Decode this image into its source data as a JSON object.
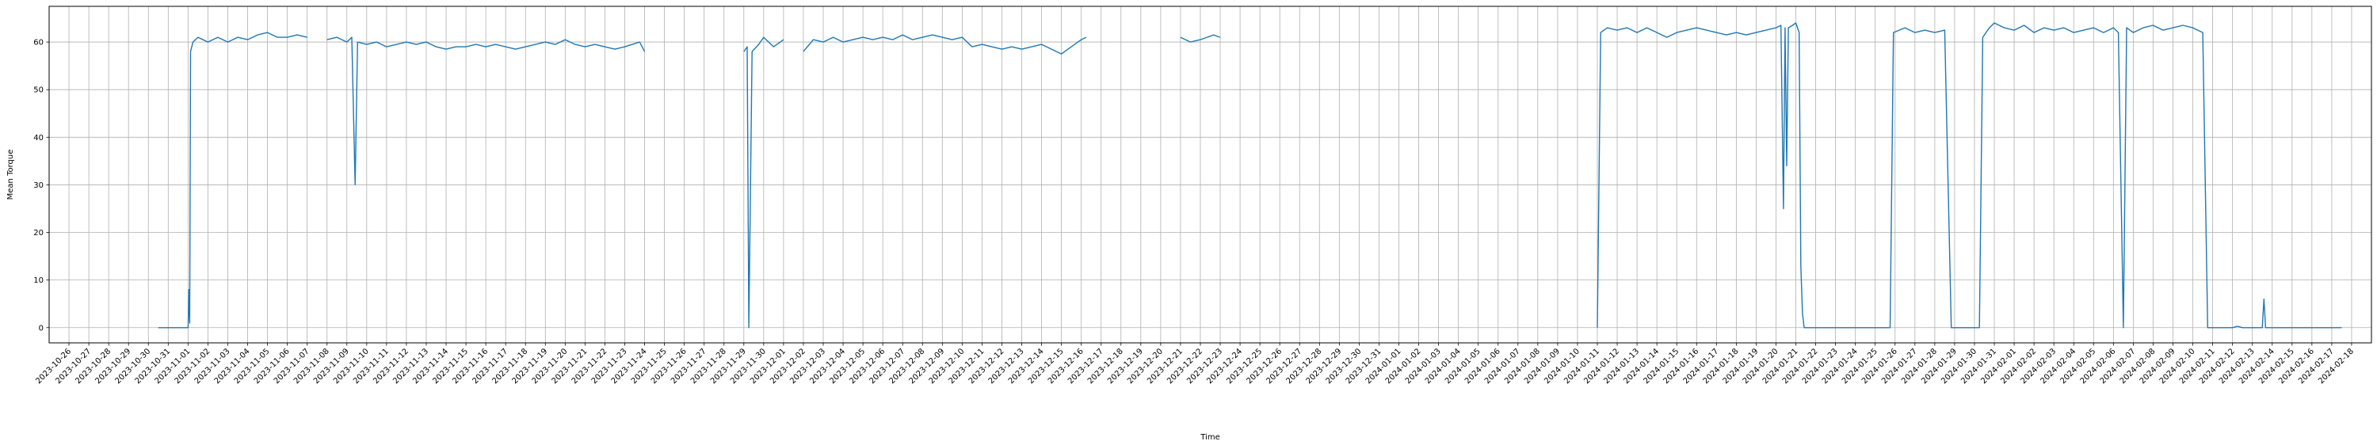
{
  "chart_data": {
    "type": "line",
    "xlabel": "Time",
    "ylabel": "Mean Torque",
    "x_type": "date",
    "xlim": [
      "2023-10-25",
      "2024-02-19"
    ],
    "ylim": [
      -3.2,
      67.5
    ],
    "y_ticks": [
      0,
      10,
      20,
      30,
      40,
      50,
      60
    ],
    "x_tick_start": "2023-10-26",
    "x_tick_end": "2024-02-18",
    "x_tick_step_days": 1,
    "grid": true,
    "legend": "none",
    "line_color": "#1f77b4",
    "series": [
      {
        "segments": [
          [
            [
              "2023-10-30 12:00",
              0
            ],
            [
              "2023-10-31 12:00",
              0
            ],
            [
              "2023-11-01 00:00",
              0
            ],
            [
              "2023-11-01 01:00",
              8
            ],
            [
              "2023-11-01 02:00",
              1
            ],
            [
              "2023-11-01 03:00",
              58
            ],
            [
              "2023-11-01 06:00",
              60
            ],
            [
              "2023-11-01 12:00",
              61
            ],
            [
              "2023-11-02 00:00",
              60
            ],
            [
              "2023-11-02 12:00",
              61
            ],
            [
              "2023-11-03 00:00",
              60
            ],
            [
              "2023-11-03 12:00",
              61
            ],
            [
              "2023-11-04 00:00",
              60.5
            ],
            [
              "2023-11-04 12:00",
              61.5
            ],
            [
              "2023-11-05 00:00",
              62
            ],
            [
              "2023-11-05 12:00",
              61
            ],
            [
              "2023-11-06 00:00",
              61
            ],
            [
              "2023-11-06 12:00",
              61.5
            ],
            [
              "2023-11-07 00:00",
              61
            ]
          ],
          [
            [
              "2023-11-08 00:00",
              60.5
            ],
            [
              "2023-11-08 12:00",
              61
            ],
            [
              "2023-11-09 00:00",
              60
            ],
            [
              "2023-11-09 06:00",
              61
            ],
            [
              "2023-11-09 10:00",
              30
            ],
            [
              "2023-11-09 13:00",
              60
            ],
            [
              "2023-11-10 00:00",
              59.5
            ],
            [
              "2023-11-10 12:00",
              60
            ],
            [
              "2023-11-11 00:00",
              59
            ],
            [
              "2023-11-11 12:00",
              59.5
            ],
            [
              "2023-11-12 00:00",
              60
            ],
            [
              "2023-11-12 12:00",
              59.5
            ],
            [
              "2023-11-13 00:00",
              60
            ],
            [
              "2023-11-13 12:00",
              59
            ],
            [
              "2023-11-14 00:00",
              58.5
            ],
            [
              "2023-11-14 12:00",
              59
            ],
            [
              "2023-11-15 00:00",
              59
            ],
            [
              "2023-11-15 12:00",
              59.5
            ],
            [
              "2023-11-16 00:00",
              59
            ],
            [
              "2023-11-16 12:00",
              59.5
            ],
            [
              "2023-11-17 00:00",
              59
            ],
            [
              "2023-11-17 12:00",
              58.5
            ],
            [
              "2023-11-18 00:00",
              59
            ],
            [
              "2023-11-18 12:00",
              59.5
            ],
            [
              "2023-11-19 00:00",
              60
            ],
            [
              "2023-11-19 12:00",
              59.5
            ],
            [
              "2023-11-20 00:00",
              60.5
            ],
            [
              "2023-11-20 12:00",
              59.5
            ],
            [
              "2023-11-21 00:00",
              59
            ],
            [
              "2023-11-21 12:00",
              59.5
            ],
            [
              "2023-11-22 00:00",
              59
            ],
            [
              "2023-11-22 12:00",
              58.5
            ],
            [
              "2023-11-23 00:00",
              59
            ],
            [
              "2023-11-23 18:00",
              60
            ],
            [
              "2023-11-24 00:00",
              58
            ]
          ],
          [
            [
              "2023-11-29 00:00",
              58
            ],
            [
              "2023-11-29 04:00",
              59
            ],
            [
              "2023-11-29 06:00",
              0
            ],
            [
              "2023-11-29 10:00",
              58
            ],
            [
              "2023-11-29 18:00",
              59.5
            ],
            [
              "2023-11-30 00:00",
              61
            ],
            [
              "2023-11-30 12:00",
              59
            ],
            [
              "2023-12-01 00:00",
              60.5
            ]
          ],
          [
            [
              "2023-12-02 00:00",
              58
            ],
            [
              "2023-12-02 12:00",
              60.5
            ],
            [
              "2023-12-03 00:00",
              60
            ],
            [
              "2023-12-03 12:00",
              61
            ],
            [
              "2023-12-04 00:00",
              60
            ],
            [
              "2023-12-04 12:00",
              60.5
            ],
            [
              "2023-12-05 00:00",
              61
            ],
            [
              "2023-12-05 12:00",
              60.5
            ],
            [
              "2023-12-06 00:00",
              61
            ],
            [
              "2023-12-06 12:00",
              60.5
            ],
            [
              "2023-12-07 00:00",
              61.5
            ],
            [
              "2023-12-07 12:00",
              60.5
            ],
            [
              "2023-12-08 00:00",
              61
            ],
            [
              "2023-12-08 12:00",
              61.5
            ],
            [
              "2023-12-09 00:00",
              61
            ],
            [
              "2023-12-09 12:00",
              60.5
            ],
            [
              "2023-12-10 00:00",
              61
            ],
            [
              "2023-12-10 12:00",
              59
            ],
            [
              "2023-12-11 00:00",
              59.5
            ],
            [
              "2023-12-11 12:00",
              59
            ],
            [
              "2023-12-12 00:00",
              58.5
            ],
            [
              "2023-12-12 12:00",
              59
            ],
            [
              "2023-12-13 00:00",
              58.5
            ],
            [
              "2023-12-13 12:00",
              59
            ],
            [
              "2023-12-14 00:00",
              59.5
            ],
            [
              "2023-12-14 12:00",
              58.5
            ],
            [
              "2023-12-15 00:00",
              57.5
            ],
            [
              "2023-12-15 12:00",
              59
            ],
            [
              "2023-12-16 00:00",
              60.5
            ],
            [
              "2023-12-16 06:00",
              61
            ]
          ],
          [
            [
              "2023-12-21 00:00",
              61
            ],
            [
              "2023-12-21 06:00",
              60.5
            ],
            [
              "2023-12-21 12:00",
              60
            ],
            [
              "2023-12-22 00:00",
              60.5
            ],
            [
              "2023-12-22 08:00",
              61
            ],
            [
              "2023-12-22 16:00",
              61.5
            ],
            [
              "2023-12-23 00:00",
              61
            ]
          ],
          [
            [
              "2024-01-11 00:00",
              0
            ],
            [
              "2024-01-11 04:00",
              62
            ],
            [
              "2024-01-11 12:00",
              63
            ],
            [
              "2024-01-12 00:00",
              62.5
            ],
            [
              "2024-01-12 12:00",
              63
            ],
            [
              "2024-01-13 00:00",
              62
            ],
            [
              "2024-01-13 12:00",
              63
            ],
            [
              "2024-01-14 00:00",
              62
            ],
            [
              "2024-01-14 12:00",
              61
            ],
            [
              "2024-01-15 00:00",
              62
            ],
            [
              "2024-01-15 12:00",
              62.5
            ],
            [
              "2024-01-16 00:00",
              63
            ],
            [
              "2024-01-16 12:00",
              62.5
            ],
            [
              "2024-01-17 00:00",
              62
            ],
            [
              "2024-01-17 12:00",
              61.5
            ],
            [
              "2024-01-18 00:00",
              62
            ],
            [
              "2024-01-18 12:00",
              61.5
            ],
            [
              "2024-01-19 00:00",
              62
            ],
            [
              "2024-01-19 12:00",
              62.5
            ],
            [
              "2024-01-20 00:00",
              63
            ],
            [
              "2024-01-20 06:00",
              63.5
            ],
            [
              "2024-01-20 09:00",
              25
            ],
            [
              "2024-01-20 11:00",
              63
            ],
            [
              "2024-01-20 13:00",
              34
            ],
            [
              "2024-01-20 15:00",
              63
            ],
            [
              "2024-01-20 20:00",
              63.5
            ],
            [
              "2024-01-21 00:00",
              64
            ],
            [
              "2024-01-21 04:00",
              62
            ],
            [
              "2024-01-21 06:00",
              13
            ],
            [
              "2024-01-21 08:00",
              3
            ],
            [
              "2024-01-21 10:00",
              0
            ],
            [
              "2024-01-22 00:00",
              0
            ],
            [
              "2024-01-24 00:00",
              0
            ],
            [
              "2024-01-25 18:00",
              0
            ],
            [
              "2024-01-25 22:00",
              62
            ],
            [
              "2024-01-26 12:00",
              63
            ],
            [
              "2024-01-27 00:00",
              62
            ],
            [
              "2024-01-27 12:00",
              62.5
            ],
            [
              "2024-01-28 00:00",
              62
            ],
            [
              "2024-01-28 12:00",
              62.5
            ],
            [
              "2024-01-28 20:00",
              0
            ],
            [
              "2024-01-29 00:00",
              0
            ],
            [
              "2024-01-30 00:00",
              0
            ],
            [
              "2024-01-30 06:00",
              0
            ],
            [
              "2024-01-30 10:00",
              61
            ],
            [
              "2024-01-30 18:00",
              63
            ],
            [
              "2024-01-31 00:00",
              64
            ],
            [
              "2024-01-31 12:00",
              63
            ],
            [
              "2024-02-01 00:00",
              62.5
            ],
            [
              "2024-02-01 12:00",
              63.5
            ],
            [
              "2024-02-02 00:00",
              62
            ],
            [
              "2024-02-02 12:00",
              63
            ],
            [
              "2024-02-03 00:00",
              62.5
            ],
            [
              "2024-02-03 12:00",
              63
            ],
            [
              "2024-02-04 00:00",
              62
            ],
            [
              "2024-02-04 12:00",
              62.5
            ],
            [
              "2024-02-05 00:00",
              63
            ],
            [
              "2024-02-05 12:00",
              62
            ],
            [
              "2024-02-06 00:00",
              63
            ],
            [
              "2024-02-06 06:00",
              62
            ],
            [
              "2024-02-06 12:00",
              0
            ],
            [
              "2024-02-06 16:00",
              63
            ],
            [
              "2024-02-07 00:00",
              62
            ],
            [
              "2024-02-07 12:00",
              63
            ],
            [
              "2024-02-08 00:00",
              63.5
            ],
            [
              "2024-02-08 12:00",
              62.5
            ],
            [
              "2024-02-09 00:00",
              63
            ],
            [
              "2024-02-09 12:00",
              63.5
            ],
            [
              "2024-02-10 00:00",
              63
            ],
            [
              "2024-02-10 12:00",
              62
            ],
            [
              "2024-02-10 18:00",
              0
            ],
            [
              "2024-02-11 00:00",
              0
            ],
            [
              "2024-02-12 00:00",
              0
            ],
            [
              "2024-02-12 06:00",
              0.3
            ],
            [
              "2024-02-12 12:00",
              0
            ],
            [
              "2024-02-13 12:00",
              0
            ],
            [
              "2024-02-13 14:00",
              6
            ],
            [
              "2024-02-13 16:00",
              0
            ],
            [
              "2024-02-14 00:00",
              0
            ],
            [
              "2024-02-15 00:00",
              0
            ],
            [
              "2024-02-16 00:00",
              0
            ],
            [
              "2024-02-17 00:00",
              0
            ],
            [
              "2024-02-17 12:00",
              0
            ]
          ]
        ]
      }
    ]
  }
}
